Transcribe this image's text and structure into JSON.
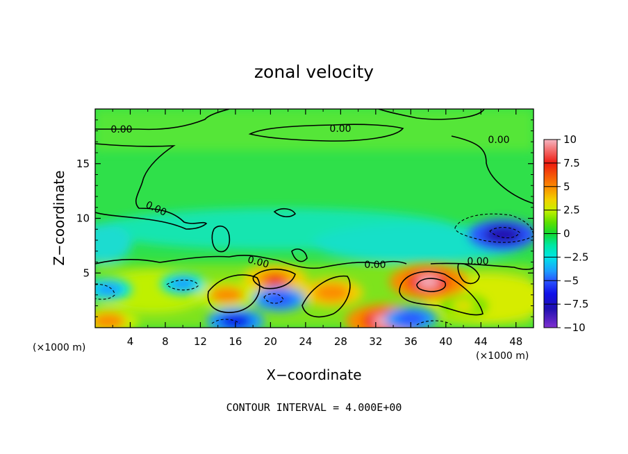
{
  "chart_data": {
    "type": "heatmap",
    "title": "zonal velocity",
    "xlabel": "X−coordinate",
    "ylabel": "Z−coordinate",
    "x_unit": "(×1000 m)",
    "z_unit": "(×1000 m)",
    "xlim": [
      0,
      50
    ],
    "ylim": [
      0,
      20
    ],
    "x_ticks": [
      4,
      8,
      12,
      16,
      20,
      24,
      28,
      32,
      36,
      40,
      44,
      48
    ],
    "y_ticks": [
      5,
      10,
      15
    ],
    "colorbar": {
      "range": [
        -10,
        10
      ],
      "ticks": [
        10,
        7.5,
        5,
        2.5,
        0,
        -2.5,
        -5,
        -7.5,
        -10
      ],
      "tick_labels": [
        "10",
        "7.5",
        "5",
        "2.5",
        "0",
        "−2.5",
        "−5",
        "−7.5",
        "−10"
      ]
    },
    "contour_label": "0.00",
    "contour_interval_text": "CONTOUR INTERVAL = 4.000E+00",
    "features": [
      {
        "x": 38,
        "z": 4.2,
        "value": 10
      },
      {
        "x": 33,
        "z": 0.6,
        "value": 10
      },
      {
        "x": 20.5,
        "z": 4.4,
        "value": 7.5
      },
      {
        "x": 27,
        "z": 3.2,
        "value": 7
      },
      {
        "x": 15,
        "z": 3,
        "value": 6.5
      },
      {
        "x": 1.5,
        "z": 0.6,
        "value": 6.5
      },
      {
        "x": 42,
        "z": 2,
        "value": 4
      },
      {
        "x": 46.5,
        "z": 8.5,
        "value": -8
      },
      {
        "x": 16,
        "z": 0.6,
        "value": -6
      },
      {
        "x": 21,
        "z": 2.6,
        "value": -5
      },
      {
        "x": 1.5,
        "z": 3.5,
        "value": -4
      },
      {
        "x": 10,
        "z": 4,
        "value": -3.5
      },
      {
        "x": 36,
        "z": 0.8,
        "value": -5
      }
    ]
  }
}
